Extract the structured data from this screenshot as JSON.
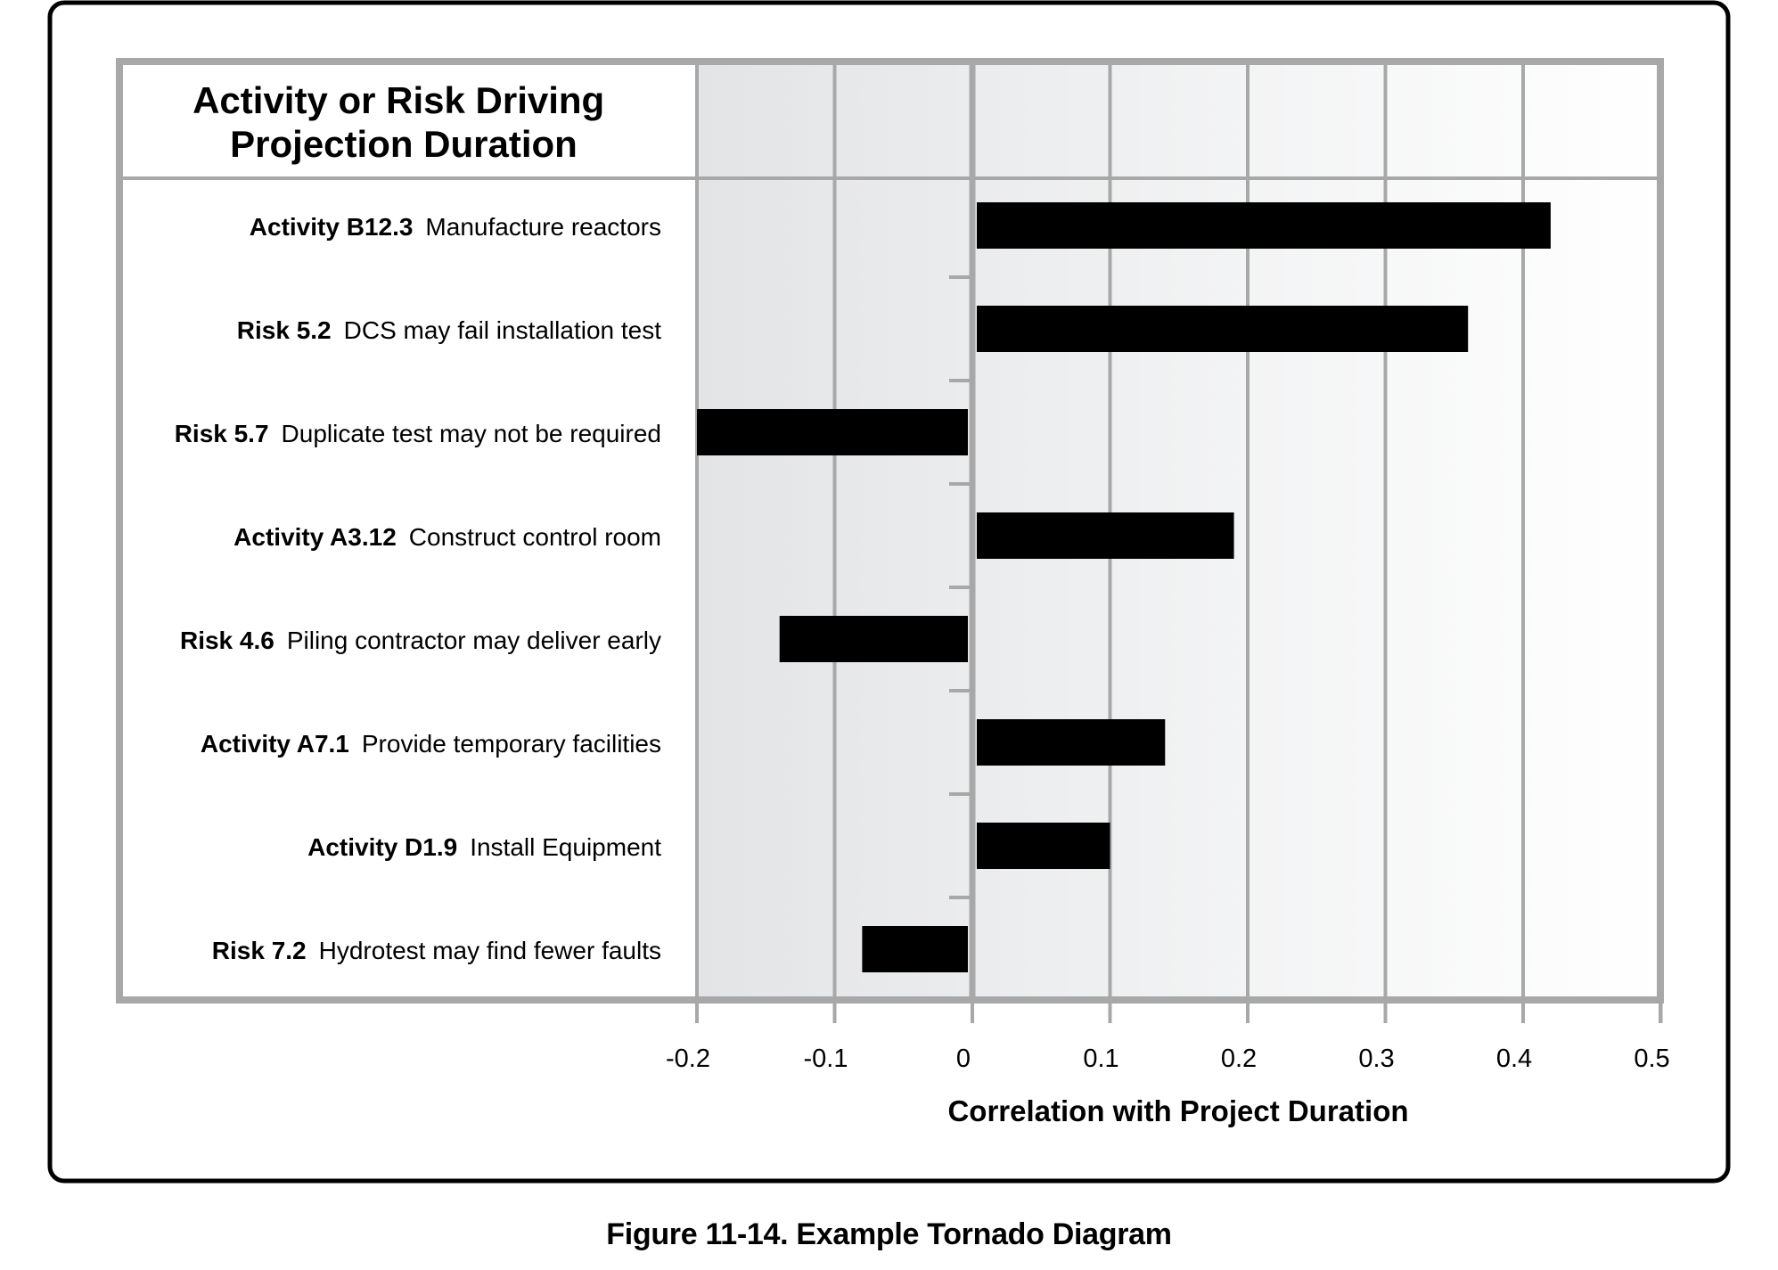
{
  "figure_caption": "Figure 11-14. Example Tornado Diagram",
  "chart_data": {
    "type": "bar",
    "orientation": "horizontal",
    "title_lines": [
      "Activity or Risk Driving",
      "Projection Duration"
    ],
    "xlabel": "Correlation with Project Duration",
    "xlim": [
      -0.2,
      0.5
    ],
    "xticks": [
      "-0.2",
      "-0.1",
      "0",
      "0.1",
      "0.2",
      "0.3",
      "0.4",
      "0.5"
    ],
    "grid": true,
    "bar_color": "#000000",
    "rows": [
      {
        "id": "Activity B12.3",
        "description": "Manufacture reactors",
        "value": 0.42
      },
      {
        "id": "Risk 5.2",
        "description": "DCS may fail installation test",
        "value": 0.36
      },
      {
        "id": "Risk 5.7",
        "description": "Duplicate test may not be required",
        "value": -0.2
      },
      {
        "id": "Activity A3.12",
        "description": "Construct control room",
        "value": 0.19
      },
      {
        "id": "Risk 4.6",
        "description": "Piling contractor may deliver early",
        "value": -0.14
      },
      {
        "id": "Activity A7.1",
        "description": "Provide temporary facilities",
        "value": 0.14
      },
      {
        "id": "Activity D1.9",
        "description": "Install Equipment",
        "value": 0.1
      },
      {
        "id": "Risk 7.2",
        "description": "Hydrotest may find fewer faults",
        "value": -0.08
      }
    ]
  }
}
